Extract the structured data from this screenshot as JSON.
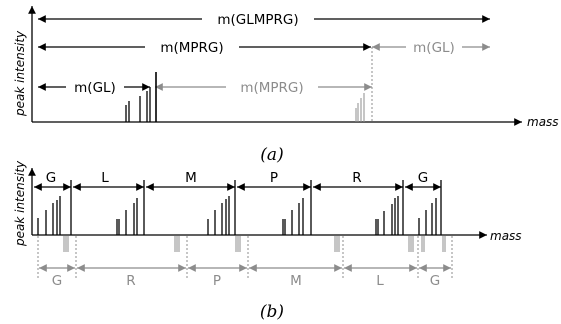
{
  "colors": {
    "primary": "#000000",
    "secondary": "#8c8c8c"
  },
  "panel_a": {
    "caption": "(a)",
    "x_axis_label": "mass",
    "y_axis_label": "peak intensity",
    "labels": {
      "glmprg": "m(GLMPRG)",
      "mprg": "m(MPRG)",
      "gl_right": "m(GL)",
      "gl_left": "m(GL)",
      "mprg_right": "m(MPRG)"
    }
  },
  "panel_b": {
    "caption": "(b)",
    "x_axis_label": "mass",
    "y_axis_label": "peak intensity",
    "top_labels": [
      "G",
      "L",
      "M",
      "P",
      "R",
      "G"
    ],
    "bottom_labels": [
      "G",
      "R",
      "P",
      "M",
      "L",
      "G"
    ]
  }
}
